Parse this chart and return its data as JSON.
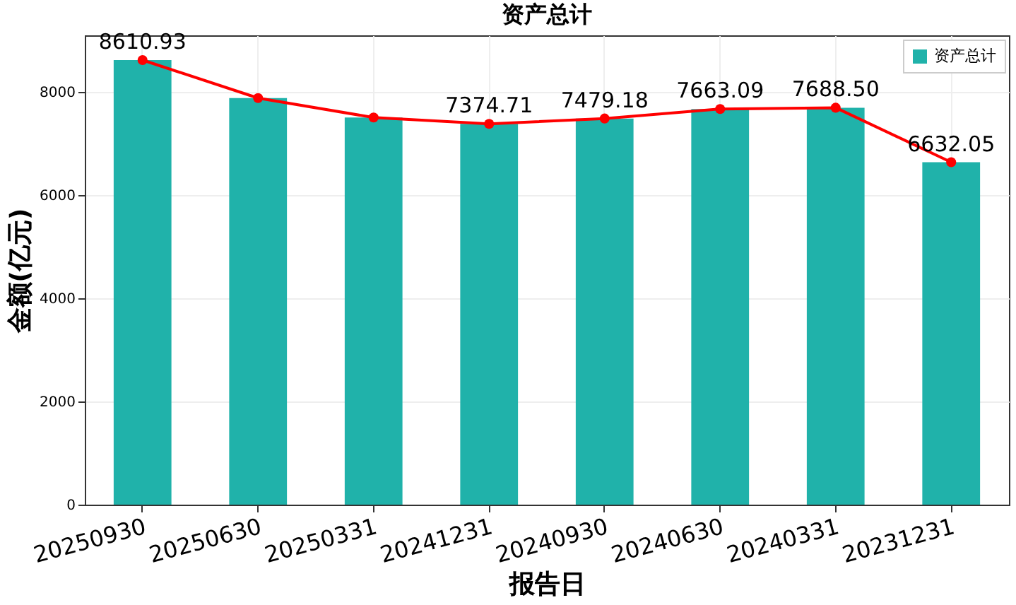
{
  "chart_data": {
    "type": "bar",
    "title": "资产总计",
    "xlabel": "报告日",
    "ylabel": "金额(亿元)",
    "categories": [
      "20250930",
      "20250630",
      "20250331",
      "20241231",
      "20240930",
      "20240630",
      "20240331",
      "20231231"
    ],
    "series": [
      {
        "name": "资产总计",
        "color": "#20b2aa",
        "values": [
          8610.93,
          7875,
          7498,
          7374.71,
          7479.18,
          7663.09,
          7688.5,
          6632.05
        ]
      },
      {
        "type": "line",
        "color": "#ff0000",
        "marker": "circle",
        "line_style": "solid",
        "values": [
          8610.93,
          7875,
          7498,
          7374.71,
          7479.18,
          7663.09,
          7688.5,
          6632.05
        ],
        "value_labels": [
          "8610.93",
          null,
          null,
          "7374.71",
          "7479.18",
          "7663.09",
          "7688.50",
          "6632.05"
        ]
      }
    ],
    "ylim": [
      0,
      9090
    ],
    "yticks": [
      0,
      2000,
      4000,
      6000,
      8000
    ],
    "grid": true,
    "legend": "top right"
  }
}
